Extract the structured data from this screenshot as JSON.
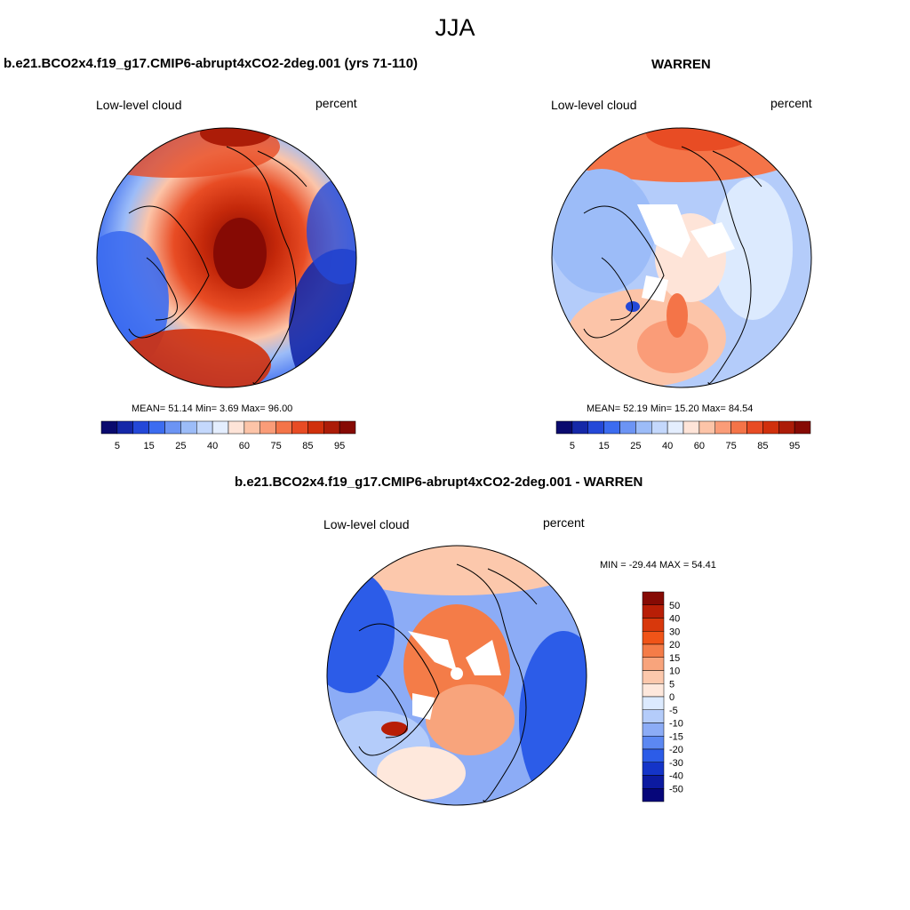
{
  "figure": {
    "title": "JJA"
  },
  "panels": {
    "model": {
      "title": "b.e21.BCO2x4.f19_g17.CMIP6-abrupt4xCO2-2deg.001 (yrs 71-110)",
      "left_label": "Low-level cloud",
      "right_label": "percent",
      "stats": "MEAN=  51.14  Min=   3.69  Max=  96.00"
    },
    "obs": {
      "title": "WARREN",
      "left_label": "Low-level cloud",
      "right_label": "percent",
      "stats": "MEAN=  52.19  Min=  15.20  Max=  84.54"
    },
    "diff": {
      "title": "b.e21.BCO2x4.f19_g17.CMIP6-abrupt4xCO2-2deg.001 - WARREN",
      "left_label": "Low-level cloud",
      "right_label": "percent",
      "stats": "MIN = -29.44 MAX =  54.41"
    }
  },
  "colorbars": {
    "field": {
      "labels": [
        "5",
        "15",
        "25",
        "40",
        "60",
        "75",
        "85",
        "95"
      ],
      "colors": [
        "#0a0a6e",
        "#1528a8",
        "#2448d8",
        "#3c6cf0",
        "#6c94f4",
        "#9cbcf8",
        "#c4d8fc",
        "#e4eefe",
        "#fee4d8",
        "#fcc4a8",
        "#fa9c78",
        "#f47448",
        "#e84c24",
        "#d0300c",
        "#ac1c08",
        "#860a04"
      ]
    },
    "diff": {
      "labels": [
        "50",
        "40",
        "30",
        "20",
        "15",
        "10",
        "5",
        "0",
        "-5",
        "-10",
        "-15",
        "-20",
        "-30",
        "-40",
        "-50"
      ],
      "colors": [
        "#860a04",
        "#b81e06",
        "#d8380c",
        "#f05418",
        "#f47c48",
        "#f8a47c",
        "#fcc8ac",
        "#fee8dc",
        "#dceafe",
        "#b4ccfa",
        "#8cacf6",
        "#5c88f2",
        "#2c5ce8",
        "#1434c8",
        "#0c1aa0",
        "#06067a"
      ]
    }
  }
}
